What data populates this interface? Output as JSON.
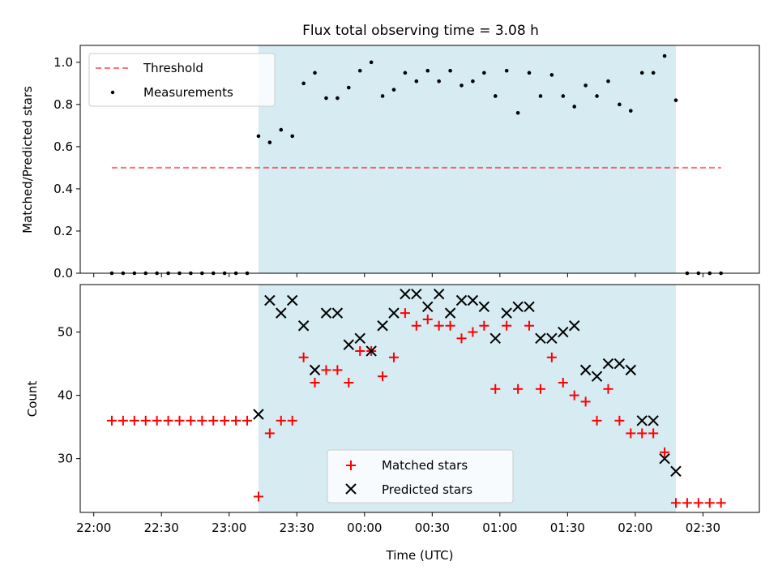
{
  "figure": {
    "title": "Flux total observing time = 3.08 h"
  },
  "colors": {
    "observing_span": "#add8e6",
    "threshold": "#ff0000",
    "measurements": "#000000",
    "matched": "#ff0000",
    "predicted": "#000000"
  },
  "chart_data": [
    {
      "type": "scatter",
      "title": "Flux total observing time = 3.08 h",
      "xlabel": "",
      "ylabel": "Matched/Predicted stars",
      "xlim": [
        "21:54",
        "02:55"
      ],
      "ylim": [
        0,
        1.08
      ],
      "yticks": [
        "0.0",
        "0.2",
        "0.4",
        "0.6",
        "0.8",
        "1.0"
      ],
      "grid": false,
      "legend": "top-left",
      "shaded_span": {
        "from": "23:13",
        "to": "02:18"
      },
      "threshold": {
        "name": "Threshold",
        "value": 0.5,
        "from": "22:08",
        "to": "02:38",
        "style": "dashed"
      },
      "series": [
        {
          "name": "Measurements",
          "marker": "dot",
          "x": [
            "22:08",
            "22:13",
            "22:18",
            "22:23",
            "22:28",
            "22:33",
            "22:38",
            "22:43",
            "22:48",
            "22:53",
            "22:58",
            "23:03",
            "23:08",
            "23:13",
            "23:18",
            "23:23",
            "23:28",
            "23:33",
            "23:38",
            "23:43",
            "23:48",
            "23:53",
            "23:58",
            "00:03",
            "00:08",
            "00:13",
            "00:18",
            "00:23",
            "00:28",
            "00:33",
            "00:38",
            "00:43",
            "00:48",
            "00:53",
            "00:58",
            "01:03",
            "01:08",
            "01:13",
            "01:18",
            "01:23",
            "01:28",
            "01:33",
            "01:38",
            "01:43",
            "01:48",
            "01:53",
            "01:58",
            "02:03",
            "02:08",
            "02:13",
            "02:18",
            "02:23",
            "02:28",
            "02:33",
            "02:38"
          ],
          "y": [
            0,
            0,
            0,
            0,
            0,
            0,
            0,
            0,
            0,
            0,
            0,
            0,
            0,
            0.65,
            0.62,
            0.68,
            0.65,
            0.9,
            0.95,
            0.83,
            0.83,
            0.88,
            0.96,
            1.0,
            0.84,
            0.87,
            0.95,
            0.91,
            0.96,
            0.91,
            0.96,
            0.89,
            0.91,
            0.95,
            0.84,
            0.96,
            0.76,
            0.95,
            0.84,
            0.94,
            0.84,
            0.79,
            0.89,
            0.84,
            0.91,
            0.8,
            0.77,
            0.95,
            0.95,
            1.03,
            0.82,
            0,
            0,
            0,
            0
          ]
        }
      ]
    },
    {
      "type": "scatter",
      "xlabel": "Time (UTC)",
      "ylabel": "Count",
      "xlim": [
        "21:54",
        "02:55"
      ],
      "ylim": [
        21.5,
        57.5
      ],
      "xticks": [
        "22:00",
        "22:30",
        "23:00",
        "23:30",
        "00:00",
        "00:30",
        "01:00",
        "01:30",
        "02:00",
        "02:30"
      ],
      "yticks": [
        "30",
        "40",
        "50"
      ],
      "grid": false,
      "legend": "bottom-center",
      "shaded_span": {
        "from": "23:13",
        "to": "02:18"
      },
      "series": [
        {
          "name": "Matched stars",
          "marker": "plus",
          "x": [
            "22:08",
            "22:13",
            "22:18",
            "22:23",
            "22:28",
            "22:33",
            "22:38",
            "22:43",
            "22:48",
            "22:53",
            "22:58",
            "23:03",
            "23:08",
            "23:13",
            "23:18",
            "23:23",
            "23:28",
            "23:33",
            "23:38",
            "23:43",
            "23:48",
            "23:53",
            "23:58",
            "00:03",
            "00:08",
            "00:13",
            "00:18",
            "00:23",
            "00:28",
            "00:33",
            "00:38",
            "00:43",
            "00:48",
            "00:53",
            "00:58",
            "01:03",
            "01:08",
            "01:13",
            "01:18",
            "01:23",
            "01:28",
            "01:33",
            "01:38",
            "01:43",
            "01:48",
            "01:53",
            "01:58",
            "02:03",
            "02:08",
            "02:13",
            "02:18",
            "02:23",
            "02:28",
            "02:33",
            "02:38"
          ],
          "y": [
            36,
            36,
            36,
            36,
            36,
            36,
            36,
            36,
            36,
            36,
            36,
            36,
            36,
            24,
            34,
            36,
            36,
            46,
            42,
            44,
            44,
            42,
            47,
            47,
            43,
            46,
            53,
            51,
            52,
            51,
            51,
            49,
            50,
            51,
            41,
            51,
            41,
            51,
            41,
            46,
            42,
            40,
            39,
            36,
            41,
            36,
            34,
            34,
            34,
            31,
            23,
            23,
            23,
            23,
            23
          ]
        },
        {
          "name": "Predicted stars",
          "marker": "x",
          "x": [
            "23:13",
            "23:18",
            "23:23",
            "23:28",
            "23:33",
            "23:38",
            "23:43",
            "23:48",
            "23:53",
            "23:58",
            "00:03",
            "00:08",
            "00:13",
            "00:18",
            "00:23",
            "00:28",
            "00:33",
            "00:38",
            "00:43",
            "00:48",
            "00:53",
            "00:58",
            "01:03",
            "01:08",
            "01:13",
            "01:18",
            "01:23",
            "01:28",
            "01:33",
            "01:38",
            "01:43",
            "01:48",
            "01:53",
            "01:58",
            "02:03",
            "02:08",
            "02:13",
            "02:18"
          ],
          "y": [
            37,
            55,
            53,
            55,
            51,
            44,
            53,
            53,
            48,
            49,
            47,
            51,
            53,
            56,
            56,
            54,
            56,
            53,
            55,
            55,
            54,
            49,
            53,
            54,
            54,
            49,
            49,
            50,
            51,
            44,
            43,
            45,
            45,
            44,
            36,
            36,
            30,
            28
          ]
        }
      ]
    }
  ]
}
